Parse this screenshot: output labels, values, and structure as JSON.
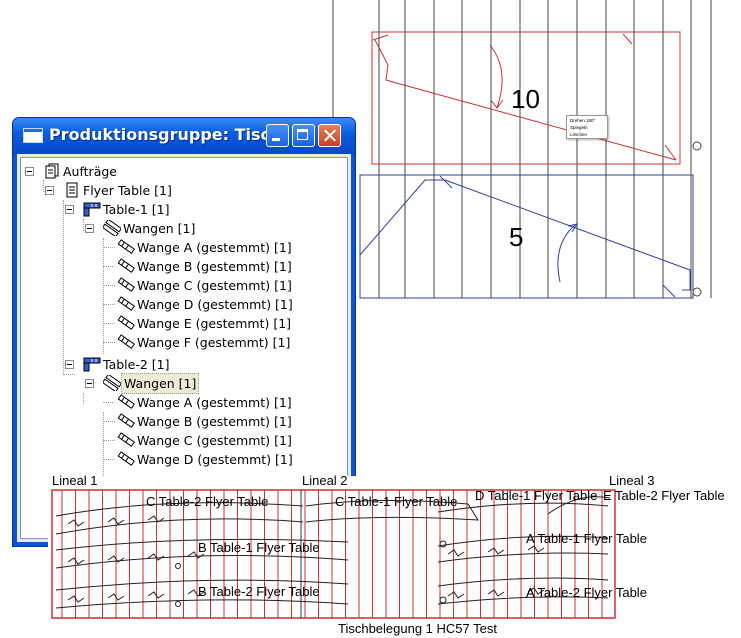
{
  "window": {
    "title": "Produktionsgruppe: Tisc..."
  },
  "tree": {
    "root": "Aufträge",
    "job": "Flyer Table [1]",
    "table1": {
      "label": "Table-1 [1]",
      "group": "Wangen [1]",
      "items": [
        "Wange A (gestemmt) [1]",
        "Wange B (gestemmt) [1]",
        "Wange C (gestemmt) [1]",
        "Wange D (gestemmt) [1]",
        "Wange E (gestemmt) [1]",
        "Wange F (gestemmt) [1]"
      ]
    },
    "table2": {
      "label": "Table-2 [1]",
      "group": "Wangen [1]",
      "items": [
        "Wange A (gestemmt) [1]",
        "Wange B (gestemmt) [1]",
        "Wange C (gestemmt) [1]",
        "Wange D (gestemmt) [1]"
      ]
    }
  },
  "drawing": {
    "label_top": "10",
    "label_bottom": "5",
    "context_menu": [
      "Drehen 180°",
      "Spiegeln",
      "Löschen"
    ]
  },
  "layout": {
    "lineal1": "Lineal 1",
    "lineal2": "Lineal 2",
    "lineal3": "Lineal 3",
    "parts": {
      "c_table2": "C Table-2  Flyer Table",
      "c_table1": "C Table-1  Flyer Table",
      "d_table1": "D Table-1  Flyer Table",
      "e_table2": "E Table-2  Flyer Table",
      "b_table1": "B Table-1  Flyer Table",
      "a_table1": "A Table-1  Flyer Table",
      "b_table2": "B Table-2  Flyer Table",
      "a_table2": "A Table-2  Flyer Table"
    },
    "caption": "Tischbelegung 1 HC57 Test"
  },
  "colors": {
    "red": "#d03030",
    "blue": "#3040a0",
    "xp_blue": "#0a54d8",
    "close_red": "#d04a28"
  }
}
